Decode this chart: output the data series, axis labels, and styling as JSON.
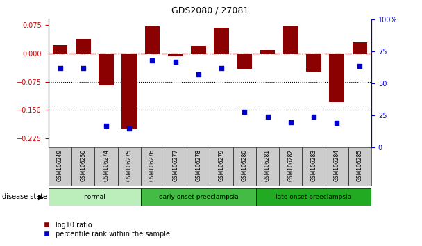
{
  "title": "GDS2080 / 27081",
  "samples": [
    "GSM106249",
    "GSM106250",
    "GSM106274",
    "GSM106275",
    "GSM106276",
    "GSM106277",
    "GSM106278",
    "GSM106279",
    "GSM106280",
    "GSM106281",
    "GSM106282",
    "GSM106283",
    "GSM106284",
    "GSM106285"
  ],
  "log10_ratio": [
    0.022,
    0.038,
    -0.085,
    -0.2,
    0.072,
    -0.008,
    0.02,
    0.068,
    -0.04,
    0.01,
    0.072,
    -0.048,
    -0.13,
    0.03
  ],
  "percentile_rank": [
    62,
    62,
    17,
    15,
    68,
    67,
    57,
    62,
    28,
    24,
    20,
    24,
    19,
    64
  ],
  "bar_color": "#8B0000",
  "dot_color": "#0000CC",
  "refline_color": "#CC0000",
  "groups": [
    {
      "label": "normal",
      "start": 0,
      "end": 4,
      "color": "#bbeebb"
    },
    {
      "label": "early onset preeclampsia",
      "start": 4,
      "end": 9,
      "color": "#44bb44"
    },
    {
      "label": "late onset preeclampsia",
      "start": 9,
      "end": 14,
      "color": "#22aa22"
    }
  ],
  "ylim_left": [
    -0.25,
    0.09
  ],
  "ylim_right": [
    0,
    100
  ],
  "yticks_left": [
    0.075,
    0.0,
    -0.075,
    -0.15,
    -0.225
  ],
  "yticks_right": [
    100,
    75,
    50,
    25,
    0
  ],
  "hlines": [
    -0.075,
    -0.15
  ],
  "background_color": "#ffffff",
  "legend_items": [
    "log10 ratio",
    "percentile rank within the sample"
  ]
}
